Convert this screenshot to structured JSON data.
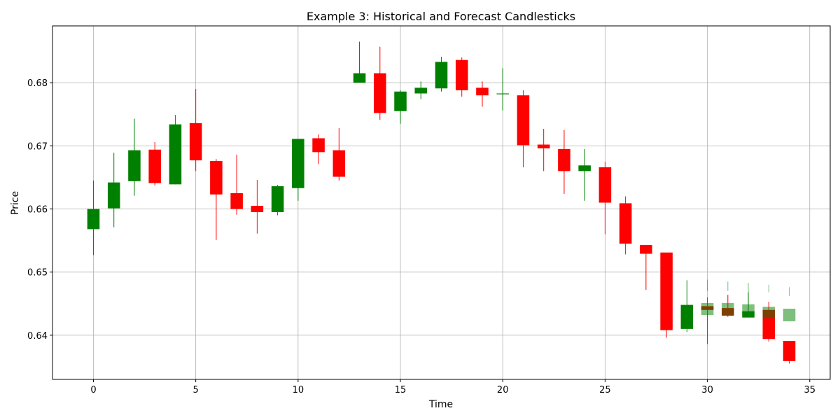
{
  "chart_data": {
    "type": "candlestick",
    "title": "Example 3: Historical and Forecast Candlesticks",
    "xlabel": "Time",
    "ylabel": "Price",
    "xlim": [
      -2,
      36
    ],
    "ylim": [
      0.633,
      0.689
    ],
    "xticks": [
      0,
      5,
      10,
      15,
      20,
      25,
      30,
      35
    ],
    "yticks": [
      0.64,
      0.65,
      0.66,
      0.67,
      0.68
    ],
    "grid": true,
    "colors": {
      "up": "#008000",
      "down": "#ff0000"
    },
    "historical": [
      {
        "t": 0,
        "open": 0.6568,
        "high": 0.6645,
        "low": 0.6527,
        "close": 0.66
      },
      {
        "t": 1,
        "open": 0.6601,
        "high": 0.6689,
        "low": 0.6571,
        "close": 0.6642
      },
      {
        "t": 2,
        "open": 0.6644,
        "high": 0.6743,
        "low": 0.6621,
        "close": 0.6693
      },
      {
        "t": 3,
        "open": 0.6694,
        "high": 0.6706,
        "low": 0.6637,
        "close": 0.6641
      },
      {
        "t": 4,
        "open": 0.6639,
        "high": 0.6749,
        "low": 0.6639,
        "close": 0.6734
      },
      {
        "t": 5,
        "open": 0.6736,
        "high": 0.679,
        "low": 0.666,
        "close": 0.6677
      },
      {
        "t": 6,
        "open": 0.6676,
        "high": 0.6679,
        "low": 0.6551,
        "close": 0.6623
      },
      {
        "t": 7,
        "open": 0.6625,
        "high": 0.6686,
        "low": 0.6591,
        "close": 0.66
      },
      {
        "t": 8,
        "open": 0.6605,
        "high": 0.6646,
        "low": 0.6561,
        "close": 0.6595
      },
      {
        "t": 9,
        "open": 0.6595,
        "high": 0.6638,
        "low": 0.659,
        "close": 0.6636
      },
      {
        "t": 10,
        "open": 0.6633,
        "high": 0.6711,
        "low": 0.6613,
        "close": 0.6711
      },
      {
        "t": 11,
        "open": 0.6712,
        "high": 0.6718,
        "low": 0.6671,
        "close": 0.669
      },
      {
        "t": 12,
        "open": 0.6693,
        "high": 0.6728,
        "low": 0.6645,
        "close": 0.6651
      },
      {
        "t": 13,
        "open": 0.68,
        "high": 0.6865,
        "low": 0.68,
        "close": 0.6815
      },
      {
        "t": 14,
        "open": 0.6815,
        "high": 0.6857,
        "low": 0.6741,
        "close": 0.6752
      },
      {
        "t": 15,
        "open": 0.6755,
        "high": 0.6788,
        "low": 0.6735,
        "close": 0.6786
      },
      {
        "t": 16,
        "open": 0.6783,
        "high": 0.6802,
        "low": 0.6774,
        "close": 0.6792
      },
      {
        "t": 17,
        "open": 0.6791,
        "high": 0.6841,
        "low": 0.6786,
        "close": 0.6833
      },
      {
        "t": 18,
        "open": 0.6836,
        "high": 0.684,
        "low": 0.6778,
        "close": 0.6788
      },
      {
        "t": 19,
        "open": 0.6792,
        "high": 0.6802,
        "low": 0.6762,
        "close": 0.678
      },
      {
        "t": 20,
        "open": 0.6782,
        "high": 0.6823,
        "low": 0.6756,
        "close": 0.6783
      },
      {
        "t": 21,
        "open": 0.678,
        "high": 0.6788,
        "low": 0.6666,
        "close": 0.6701
      },
      {
        "t": 22,
        "open": 0.6702,
        "high": 0.6727,
        "low": 0.666,
        "close": 0.6696
      },
      {
        "t": 23,
        "open": 0.6695,
        "high": 0.6725,
        "low": 0.6624,
        "close": 0.666
      },
      {
        "t": 24,
        "open": 0.666,
        "high": 0.6695,
        "low": 0.6613,
        "close": 0.6669
      },
      {
        "t": 25,
        "open": 0.6666,
        "high": 0.6675,
        "low": 0.656,
        "close": 0.661
      },
      {
        "t": 26,
        "open": 0.6609,
        "high": 0.662,
        "low": 0.6528,
        "close": 0.6545
      },
      {
        "t": 27,
        "open": 0.6543,
        "high": 0.6543,
        "low": 0.6472,
        "close": 0.6529
      },
      {
        "t": 28,
        "open": 0.6531,
        "high": 0.6531,
        "low": 0.6396,
        "close": 0.6408
      },
      {
        "t": 29,
        "open": 0.641,
        "high": 0.6487,
        "low": 0.6405,
        "close": 0.6448
      },
      {
        "t": 30,
        "open": 0.6446,
        "high": 0.646,
        "low": 0.6386,
        "close": 0.644
      },
      {
        "t": 31,
        "open": 0.6443,
        "high": 0.6464,
        "low": 0.6429,
        "close": 0.6431
      },
      {
        "t": 32,
        "open": 0.6428,
        "high": 0.6468,
        "low": 0.6428,
        "close": 0.6438
      },
      {
        "t": 33,
        "open": 0.644,
        "high": 0.6453,
        "low": 0.639,
        "close": 0.6394
      },
      {
        "t": 34,
        "open": 0.6391,
        "high": 0.6391,
        "low": 0.6355,
        "close": 0.6359
      }
    ],
    "forecast": [
      {
        "t": 30,
        "open": 0.6432,
        "high": 0.6488,
        "low": 0.647,
        "close": 0.6451
      },
      {
        "t": 31,
        "open": 0.6432,
        "high": 0.6485,
        "low": 0.647,
        "close": 0.6451
      },
      {
        "t": 32,
        "open": 0.6434,
        "high": 0.6483,
        "low": 0.6468,
        "close": 0.6449
      },
      {
        "t": 33,
        "open": 0.6427,
        "high": 0.648,
        "low": 0.6468,
        "close": 0.6445
      },
      {
        "t": 34,
        "open": 0.6422,
        "high": 0.6476,
        "low": 0.6462,
        "close": 0.6442
      }
    ]
  }
}
